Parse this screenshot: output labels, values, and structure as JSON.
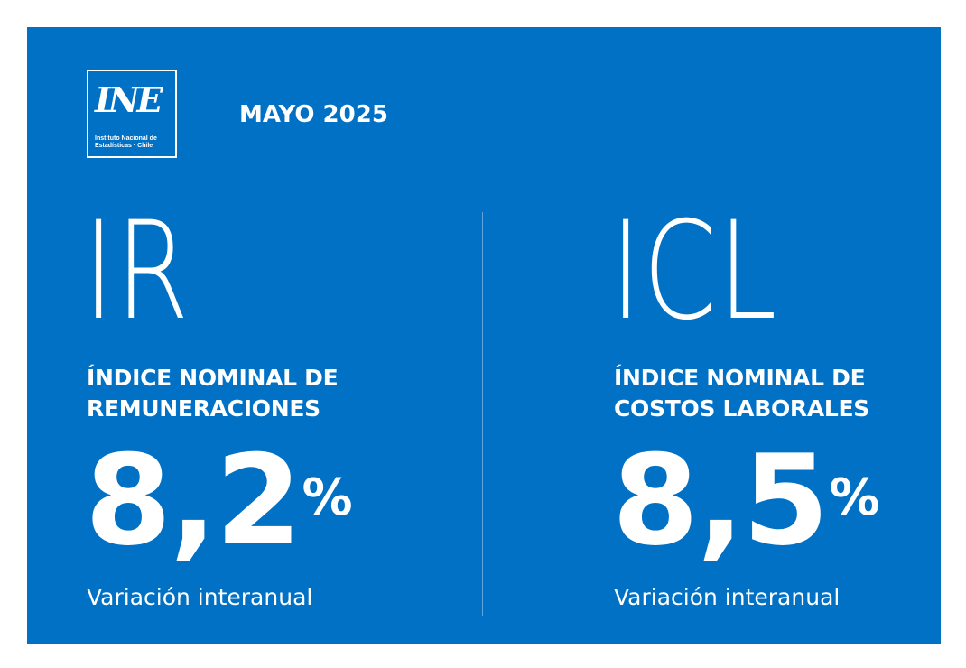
{
  "header": {
    "logo": {
      "mark": "INE",
      "line1": "Instituto Nacional de",
      "line2": "Estadísticas · Chile"
    },
    "period": "MAYO 2025"
  },
  "indicators": [
    {
      "acronym": "IR",
      "name_line1": "ÍNDICE NOMINAL DE",
      "name_line2": "REMUNERACIONES",
      "value": "8,2",
      "unit": "%",
      "label": "Variación interanual"
    },
    {
      "acronym": "ICL",
      "name_line1": "ÍNDICE NOMINAL DE",
      "name_line2": "COSTOS LABORALES",
      "value": "8,5",
      "unit": "%",
      "label": "Variación interanual"
    }
  ],
  "colors": {
    "background": "#0071c5",
    "text": "#ffffff"
  }
}
